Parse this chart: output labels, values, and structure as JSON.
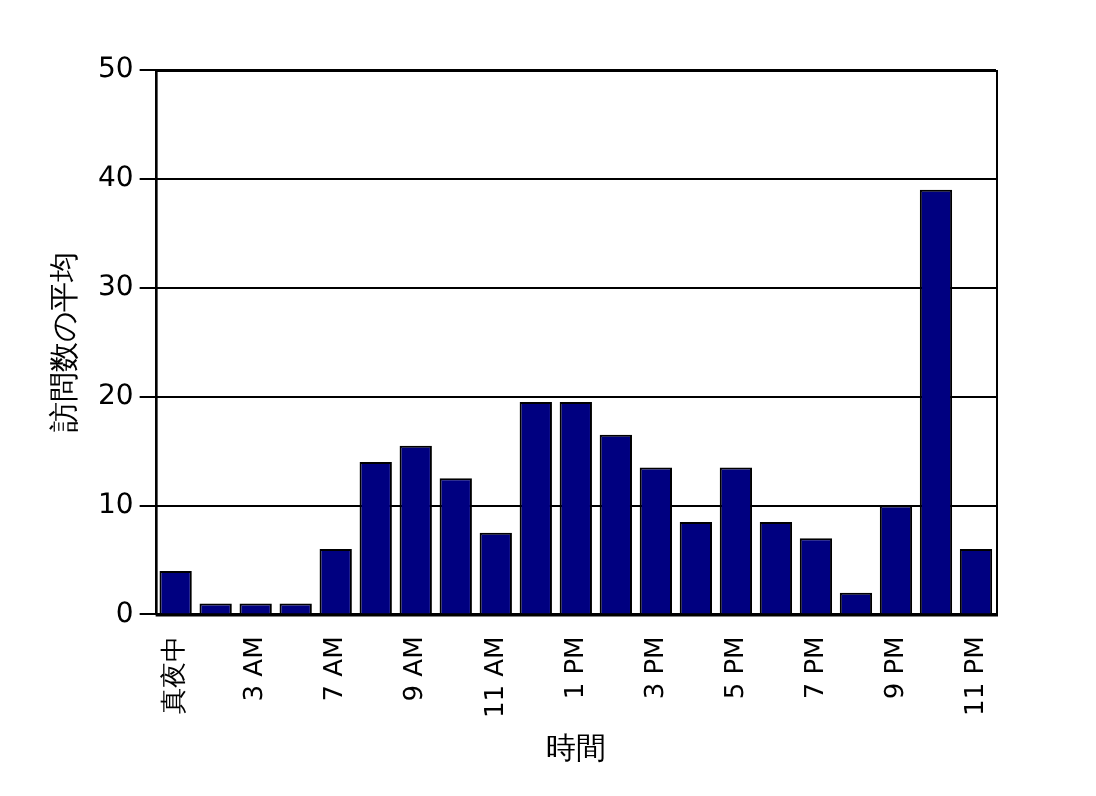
{
  "chart_data": {
    "type": "bar",
    "xlabel": "時間",
    "ylabel": "訪問数の平均",
    "categories": [
      "真夜中",
      null,
      "3 AM",
      null,
      "7 AM",
      null,
      "9 AM",
      null,
      "11 AM",
      null,
      "1 PM",
      null,
      "3 PM",
      null,
      "5 PM",
      null,
      "7 PM",
      null,
      "9 PM",
      null,
      "11 PM"
    ],
    "values": [
      4,
      1,
      1,
      1,
      6,
      14,
      15.5,
      12.5,
      7.5,
      19.5,
      19.5,
      16.5,
      13.5,
      8.5,
      13.5,
      8.5,
      7,
      2,
      10,
      39,
      6
    ],
    "color": "#000080",
    "ylim": [
      0,
      50
    ],
    "yticks": [
      0,
      10,
      20,
      30,
      40,
      50
    ],
    "grid": "y",
    "legend": false
  }
}
